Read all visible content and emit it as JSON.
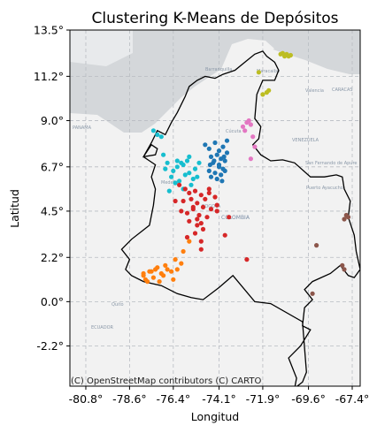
{
  "chart_data": {
    "type": "scatter",
    "title": "Clustering K-Means de Depósitos",
    "xlabel": "Longitud",
    "ylabel": "Latitud",
    "xlim": [
      -81.6,
      -67.0
    ],
    "ylim": [
      -4.2,
      13.5
    ],
    "x_ticks": [
      -80.8,
      -78.6,
      -76.4,
      -74.1,
      -71.9,
      -69.6,
      -67.4
    ],
    "x_tick_labels": [
      "-80.8°",
      "-78.6°",
      "-76.4°",
      "-74.1°",
      "-71.9°",
      "-69.6°",
      "-67.4°"
    ],
    "y_ticks": [
      -2.2,
      0.0,
      2.2,
      4.5,
      6.7,
      9.0,
      11.2,
      13.5
    ],
    "y_tick_labels": [
      "-2.2°",
      "0.0°",
      "2.2°",
      "4.5°",
      "6.7°",
      "9.0°",
      "11.2°",
      "13.5°"
    ],
    "grid": true,
    "legend": "none",
    "basemap_attribution": "(C) OpenStreetMap contributors (C) CARTO",
    "basemap_labels": [
      "PANAMA",
      "Barranquilla",
      "CARACAS",
      "VENEZUELA",
      "COLOMBIA",
      "BOGOTA",
      "Medellín",
      "San Fernando de Apure",
      "Puerto Ayacucho",
      "ECUADOR",
      "Quito",
      "Maracaibo",
      "Cúcuta",
      "Valencia"
    ],
    "boundary": {
      "name": "Colombia",
      "lon": [
        -77.9,
        -77.5,
        -77.2,
        -76.8,
        -76.5,
        -76.2,
        -75.8,
        -75.6,
        -75.2,
        -74.8,
        -74.3,
        -73.9,
        -73.3,
        -72.8,
        -72.3,
        -71.9,
        -71.7,
        -71.3,
        -71.1,
        -71.3,
        -71.9,
        -72.2,
        -72.3,
        -72.0,
        -72.1,
        -72.4,
        -72.0,
        -71.5,
        -70.9,
        -70.3,
        -69.5,
        -68.8,
        -68.2,
        -67.9,
        -67.8,
        -67.5,
        -67.6,
        -67.3,
        -67.2,
        -67.0,
        -67.3,
        -67.6,
        -68.0,
        -68.5,
        -69.4,
        -69.8,
        -69.4,
        -69.8,
        -69.9,
        -69.5,
        -70.0,
        -70.6,
        -70.2,
        -70.3,
        -69.9,
        -69.7,
        -69.9,
        -71.5,
        -72.3,
        -73.4,
        -74.1,
        -74.9,
        -75.5,
        -76.2,
        -77.0,
        -77.9,
        -78.5,
        -78.8,
        -78.6,
        -79.0,
        -78.5,
        -77.6,
        -77.4,
        -77.3,
        -77.5,
        -77.3,
        -77.6,
        -77.9,
        -77.5,
        -77.2,
        -77.3,
        -77.9
      ],
      "lat": [
        7.2,
        7.9,
        8.5,
        8.3,
        8.9,
        9.4,
        10.2,
        10.7,
        11.0,
        11.2,
        11.1,
        11.3,
        11.5,
        11.9,
        12.3,
        12.45,
        12.2,
        11.9,
        11.5,
        11.0,
        11.0,
        10.3,
        9.1,
        8.7,
        8.1,
        7.8,
        7.3,
        7.0,
        7.05,
        6.9,
        6.2,
        6.2,
        6.3,
        6.2,
        5.6,
        5.0,
        4.2,
        3.3,
        2.5,
        1.6,
        1.2,
        1.3,
        1.8,
        1.4,
        1.0,
        0.6,
        0.1,
        -0.3,
        -1.2,
        -1.4,
        -2.2,
        -2.8,
        -3.8,
        -4.3,
        -4.0,
        -3.5,
        -1.0,
        -0.1,
        0.0,
        1.3,
        0.7,
        0.1,
        0.2,
        0.4,
        0.8,
        1.0,
        1.3,
        1.6,
        2.1,
        2.6,
        3.1,
        3.8,
        4.8,
        5.6,
        6.2,
        6.8,
        7.0,
        7.2,
        7.8,
        7.6,
        7.3,
        7.2
      ]
    },
    "series": [
      {
        "color": "#1f77b4",
        "x": [
          -74.8,
          -74.6,
          -74.3,
          -74.1,
          -73.9,
          -73.7,
          -74.5,
          -74.2,
          -74.0,
          -73.8,
          -74.4,
          -74.1,
          -73.9,
          -74.6,
          -74.3,
          -74.0,
          -73.8,
          -74.2,
          -73.95,
          -74.5,
          -74.1,
          -73.85,
          -74.35,
          -73.7,
          -74.55
        ],
        "y": [
          7.8,
          7.6,
          7.9,
          7.5,
          7.7,
          7.4,
          7.2,
          7.3,
          7.1,
          7.0,
          6.9,
          6.8,
          6.6,
          6.5,
          6.4,
          6.3,
          6.5,
          6.1,
          6.0,
          6.2,
          6.7,
          7.2,
          7.0,
          8.0,
          6.8
        ]
      },
      {
        "color": "#17becf",
        "x": [
          -76.9,
          -76.7,
          -76.4,
          -76.2,
          -75.9,
          -75.6,
          -75.3,
          -76.5,
          -76.1,
          -75.8,
          -75.4,
          -76.8,
          -75.7,
          -76.3,
          -75.5,
          -76.0,
          -75.2,
          -75.9,
          -76.6,
          -76.2,
          -75.6,
          -77.0,
          -77.4,
          -77.2,
          -75.1
        ],
        "y": [
          7.3,
          6.9,
          6.5,
          6.7,
          6.8,
          6.4,
          6.6,
          6.2,
          6.0,
          6.3,
          6.1,
          6.6,
          7.0,
          5.9,
          5.8,
          6.9,
          6.2,
          5.6,
          5.5,
          7.0,
          7.2,
          8.2,
          8.5,
          8.3,
          6.9
        ]
      },
      {
        "color": "#d62728",
        "x": [
          -76.1,
          -75.8,
          -75.6,
          -75.3,
          -75.0,
          -74.8,
          -74.6,
          -74.3,
          -75.9,
          -75.5,
          -75.2,
          -74.9,
          -74.5,
          -75.7,
          -75.4,
          -75.1,
          -74.7,
          -75.6,
          -75.0,
          -74.9,
          -75.3,
          -75.0,
          -75.7,
          -75.2,
          -74.6,
          -76.3,
          -76.0,
          -75.2,
          -75.0,
          -74.2,
          -73.6,
          -73.8,
          -72.7,
          -75.4,
          -74.2
        ],
        "y": [
          5.8,
          5.6,
          5.4,
          5.5,
          5.3,
          5.1,
          5.4,
          5.2,
          5.0,
          5.1,
          4.9,
          4.7,
          4.6,
          4.4,
          4.6,
          4.3,
          4.2,
          4.0,
          3.9,
          3.6,
          3.4,
          2.6,
          3.2,
          4.1,
          5.6,
          5.0,
          4.5,
          3.8,
          3.0,
          4.8,
          4.2,
          3.3,
          2.1,
          4.7,
          4.5
        ]
      },
      {
        "color": "#ff7f0e",
        "x": [
          -77.9,
          -77.6,
          -77.3,
          -77.0,
          -76.7,
          -77.8,
          -77.4,
          -77.1,
          -76.9,
          -77.5,
          -77.7,
          -77.2,
          -76.8,
          -76.5,
          -76.3,
          -75.9,
          -75.6,
          -76.0,
          -76.2,
          -77.9,
          -76.4
        ],
        "y": [
          1.3,
          1.5,
          1.6,
          1.4,
          1.6,
          1.1,
          1.2,
          1.0,
          1.3,
          1.5,
          1.0,
          1.7,
          1.8,
          1.5,
          2.1,
          2.5,
          3.0,
          1.9,
          1.6,
          1.4,
          1.1
        ]
      },
      {
        "color": "#e377c2",
        "x": [
          -72.9,
          -72.7,
          -72.8,
          -72.5,
          -72.6,
          -72.4,
          -72.3,
          -72.5
        ],
        "y": [
          8.7,
          8.9,
          8.5,
          8.8,
          9.0,
          8.2,
          7.7,
          7.1
        ]
      },
      {
        "color": "#bcbd22",
        "x": [
          -71.0,
          -70.9,
          -70.7,
          -70.6,
          -70.5,
          -70.8,
          -72.1,
          -71.9,
          -71.7,
          -71.6
        ],
        "y": [
          12.3,
          12.35,
          12.3,
          12.2,
          12.25,
          12.2,
          11.4,
          10.3,
          10.4,
          10.5
        ]
      },
      {
        "color": "#8c564b",
        "x": [
          -67.8,
          -67.7,
          -67.6,
          -67.9,
          -67.8,
          -69.2,
          -69.4
        ],
        "y": [
          4.1,
          4.3,
          4.2,
          1.8,
          1.6,
          2.8,
          0.4
        ]
      }
    ]
  }
}
